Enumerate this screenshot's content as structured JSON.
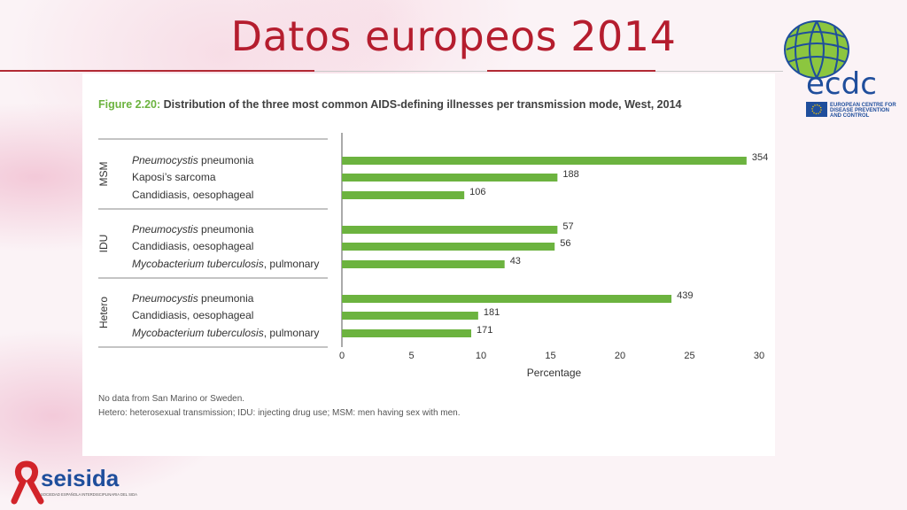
{
  "slide": {
    "title": "Datos europeos 2014"
  },
  "figure": {
    "number": "Figure 2.20:",
    "title": "Distribution of the three most common AIDS-defining illnesses per transmission mode, West, 2014",
    "notes": [
      "No data from San Marino or Sweden.",
      "Hetero: heterosexual transmission; IDU: injecting drug use; MSM: men having sex with men."
    ]
  },
  "chart_data": {
    "type": "bar",
    "orientation": "horizontal",
    "title": "Distribution of the three most common AIDS-defining illnesses per transmission mode, West, 2014",
    "xlabel": "Percentage",
    "xlim": [
      0,
      30
    ],
    "xticks": [
      "0",
      "5",
      "10",
      "15",
      "20",
      "25",
      "30"
    ],
    "bar_color": "#6cb33f",
    "groups": [
      {
        "name": "MSM",
        "bars": [
          {
            "label_italic": "Pneumocystis",
            "label_rest": " pneumonia",
            "value": 29.1,
            "count_label": "354"
          },
          {
            "label_italic": "",
            "label_rest": "Kaposi’s sarcoma",
            "value": 15.5,
            "count_label": "188"
          },
          {
            "label_italic": "",
            "label_rest": "Candidiasis, oesophageal",
            "value": 8.8,
            "count_label": "106"
          }
        ]
      },
      {
        "name": "IDU",
        "bars": [
          {
            "label_italic": "Pneumocystis",
            "label_rest": " pneumonia",
            "value": 15.5,
            "count_label": "57"
          },
          {
            "label_italic": "",
            "label_rest": "Candidiasis, oesophageal",
            "value": 15.3,
            "count_label": "56"
          },
          {
            "label_italic": "Mycobacterium tuberculosis",
            "label_rest": ", pulmonary",
            "value": 11.7,
            "count_label": "43"
          }
        ]
      },
      {
        "name": "Hetero",
        "bars": [
          {
            "label_italic": "Pneumocystis",
            "label_rest": " pneumonia",
            "value": 23.7,
            "count_label": "439"
          },
          {
            "label_italic": "",
            "label_rest": "Candidiasis, oesophageal",
            "value": 9.8,
            "count_label": "181"
          },
          {
            "label_italic": "Mycobacterium tuberculosis",
            "label_rest": ", pulmonary",
            "value": 9.3,
            "count_label": "171"
          }
        ]
      }
    ]
  },
  "logos": {
    "ecdc_text": "ecdc",
    "ecdc_subtitle": [
      "EUROPEAN CENTRE FOR",
      "DISEASE PREVENTION",
      "AND CONTROL"
    ],
    "seisida_text": "seisida",
    "seisida_subtitle": "SOCIEDAD ESPAÑOLA INTERDISCIPLINARIA DEL SIDA"
  },
  "colors": {
    "title_red": "#b51d2e",
    "green": "#6cb33f",
    "ecdc_blue": "#1f4e9c",
    "seisida_red": "#d2232a"
  }
}
